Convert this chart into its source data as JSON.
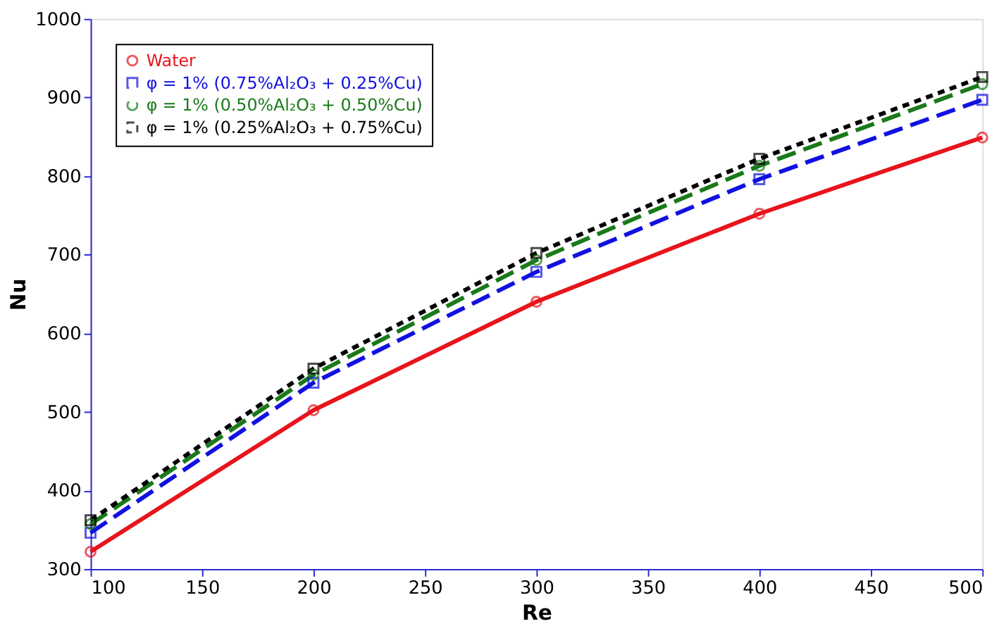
{
  "chart_data": {
    "type": "line",
    "xlabel": "Re",
    "ylabel": "Nu",
    "x": [
      100,
      200,
      300,
      400,
      500
    ],
    "xlim": [
      100,
      500
    ],
    "xticks": [
      100,
      150,
      200,
      250,
      300,
      350,
      400,
      450,
      500
    ],
    "ylim": [
      300,
      1000
    ],
    "yticks": [
      300,
      400,
      500,
      600,
      700,
      800,
      900,
      1000
    ],
    "grid": false,
    "legend": "top left",
    "series": [
      {
        "name": "Water",
        "color": "#e8141c",
        "marker": "circle",
        "line_style": "solid",
        "values": [
          322,
          502,
          640,
          752,
          849
        ]
      },
      {
        "name": "φ = 1% (0.75%Al₂O₃ + 0.25%Cu)",
        "color": "#1010e0",
        "marker": "square",
        "line_style": "dashed",
        "values": [
          346,
          537,
          678,
          796,
          897
        ]
      },
      {
        "name": "φ = 1% (0.50%Al₂O₃ + 0.50%Cu)",
        "color": "#1a7a1a",
        "marker": "circle",
        "line_style": "dashed",
        "values": [
          357,
          547,
          693,
          813,
          917
        ]
      },
      {
        "name": "φ = 1% (0.25%Al₂O₃ + 0.75%Cu)",
        "color": "#000000",
        "marker": "square",
        "line_style": "dotted",
        "values": [
          362,
          555,
          702,
          822,
          926
        ]
      }
    ]
  }
}
